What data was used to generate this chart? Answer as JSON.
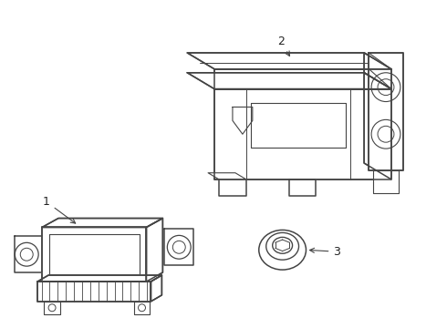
{
  "background_color": "#ffffff",
  "line_color": "#444444",
  "line_width": 1.1,
  "label_color": "#222222",
  "label_fontsize": 9,
  "fig_width": 4.9,
  "fig_height": 3.6,
  "dpi": 100
}
